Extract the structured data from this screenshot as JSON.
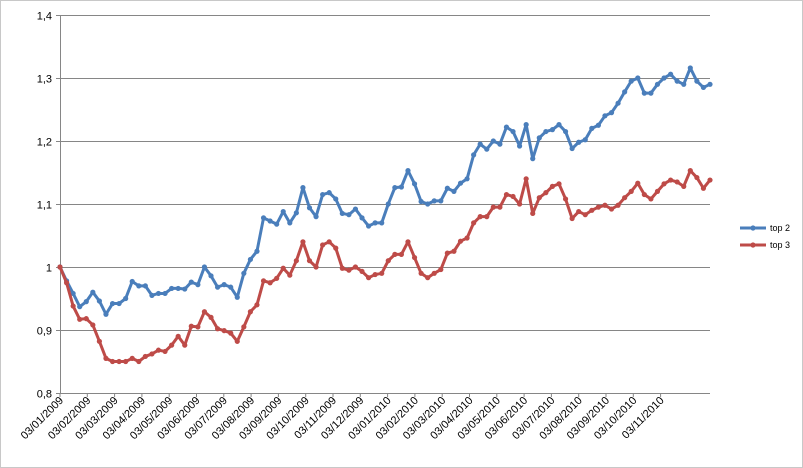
{
  "chart_data": {
    "type": "line",
    "title": "",
    "xlabel": "",
    "ylabel": "",
    "ylim": [
      0.8,
      1.4
    ],
    "yticks": [
      "0,8",
      "0,9",
      "1",
      "1,1",
      "1,2",
      "1,3",
      "1,4"
    ],
    "grid": "horizontal",
    "legend_position": "right",
    "x_tick_labels": [
      "03/01/2009",
      "03/02/2009",
      "03/03/2009",
      "03/04/2009",
      "03/05/2009",
      "03/06/2009",
      "03/07/2009",
      "03/08/2009",
      "03/09/2009",
      "03/10/2009",
      "03/11/2009",
      "03/12/2009",
      "03/01/2010",
      "03/02/2010",
      "03/03/2010",
      "03/04/2010",
      "03/05/2010",
      "03/06/2010",
      "03/07/2010",
      "03/08/2010",
      "03/09/2010",
      "03/10/2010",
      "03/11/2010"
    ],
    "series": [
      {
        "name": "top 2",
        "color": "#4a7ebb",
        "values": [
          1.0,
          0.978,
          0.958,
          0.937,
          0.945,
          0.96,
          0.946,
          0.925,
          0.942,
          0.942,
          0.95,
          0.977,
          0.97,
          0.97,
          0.955,
          0.958,
          0.958,
          0.966,
          0.966,
          0.965,
          0.976,
          0.972,
          1.0,
          0.986,
          0.968,
          0.972,
          0.968,
          0.952,
          0.99,
          1.012,
          1.025,
          1.078,
          1.073,
          1.068,
          1.088,
          1.07,
          1.086,
          1.126,
          1.094,
          1.08,
          1.115,
          1.118,
          1.108,
          1.085,
          1.083,
          1.092,
          1.078,
          1.065,
          1.07,
          1.07,
          1.1,
          1.126,
          1.127,
          1.153,
          1.132,
          1.104,
          1.1,
          1.105,
          1.105,
          1.125,
          1.12,
          1.133,
          1.14,
          1.178,
          1.195,
          1.187,
          1.2,
          1.195,
          1.222,
          1.215,
          1.192,
          1.226,
          1.172,
          1.205,
          1.215,
          1.218,
          1.226,
          1.215,
          1.188,
          1.198,
          1.202,
          1.22,
          1.225,
          1.24,
          1.245,
          1.26,
          1.278,
          1.295,
          1.3,
          1.276,
          1.276,
          1.29,
          1.3,
          1.306,
          1.295,
          1.29,
          1.316,
          1.295,
          1.285,
          1.29
        ]
      },
      {
        "name": "top 3",
        "color": "#be4b48",
        "values": [
          1.0,
          0.975,
          0.938,
          0.917,
          0.918,
          0.908,
          0.882,
          0.855,
          0.85,
          0.85,
          0.85,
          0.855,
          0.85,
          0.858,
          0.862,
          0.868,
          0.866,
          0.876,
          0.89,
          0.876,
          0.906,
          0.905,
          0.929,
          0.92,
          0.902,
          0.899,
          0.895,
          0.882,
          0.905,
          0.929,
          0.94,
          0.978,
          0.975,
          0.982,
          0.998,
          0.987,
          1.01,
          1.04,
          1.01,
          1.0,
          1.035,
          1.04,
          1.03,
          0.998,
          0.995,
          1.0,
          0.993,
          0.983,
          0.988,
          0.99,
          1.01,
          1.02,
          1.02,
          1.04,
          1.015,
          0.99,
          0.983,
          0.99,
          0.996,
          1.022,
          1.025,
          1.041,
          1.046,
          1.07,
          1.08,
          1.08,
          1.095,
          1.095,
          1.115,
          1.112,
          1.1,
          1.14,
          1.085,
          1.11,
          1.118,
          1.128,
          1.132,
          1.108,
          1.077,
          1.088,
          1.083,
          1.09,
          1.095,
          1.098,
          1.092,
          1.098,
          1.11,
          1.12,
          1.133,
          1.115,
          1.108,
          1.12,
          1.132,
          1.138,
          1.135,
          1.128,
          1.153,
          1.142,
          1.125,
          1.138
        ]
      }
    ]
  }
}
